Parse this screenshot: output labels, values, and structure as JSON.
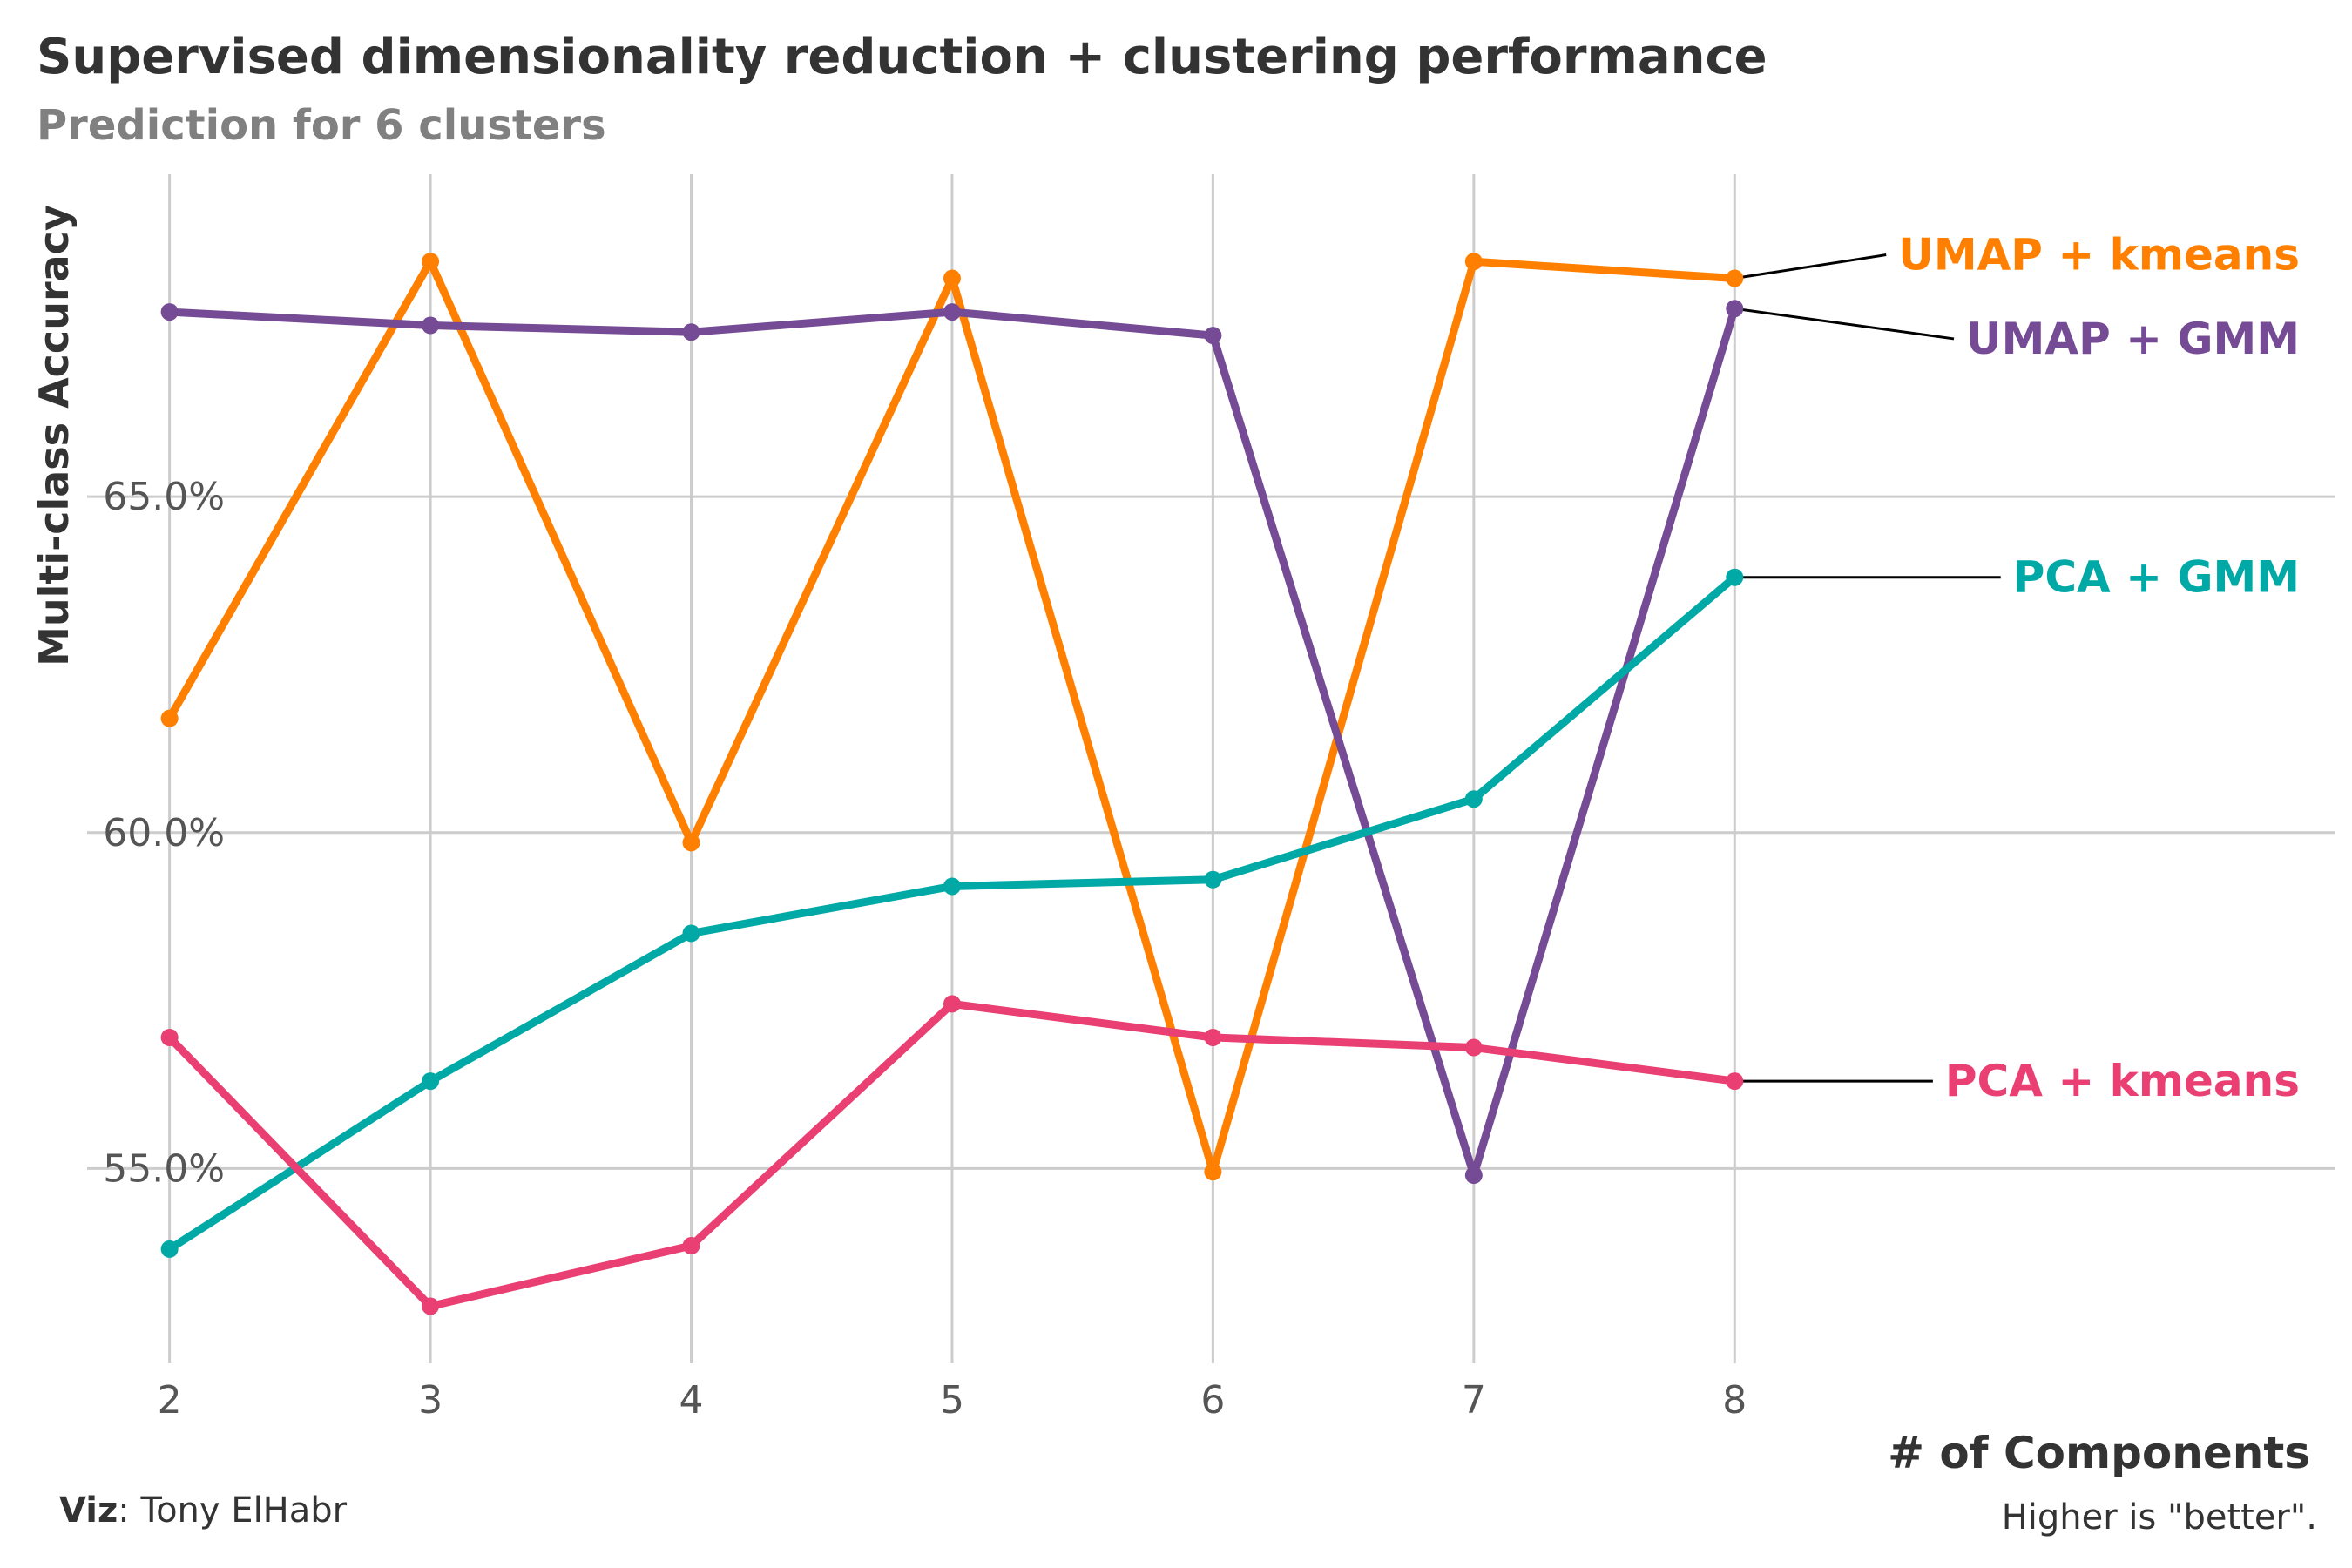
{
  "chart_data": {
    "type": "line",
    "title": "Supervised dimensionality reduction + clustering performance",
    "subtitle": "Prediction for 6 clusters",
    "xlabel": "# of Components",
    "ylabel": "Multi-class Accuracy",
    "x": [
      2,
      3,
      4,
      5,
      6,
      7,
      8
    ],
    "xlim": [
      1.35,
      10.3
    ],
    "ylim": [
      52.1,
      69.8
    ],
    "y_ticks": [
      55.0,
      60.0,
      65.0
    ],
    "y_tick_labels": [
      "55.0%",
      "60.0%",
      "65.0%"
    ],
    "x_tick_labels": [
      "2",
      "3",
      "4",
      "5",
      "6",
      "7",
      "8"
    ],
    "grid": true,
    "legend": "direct-labels-right",
    "series": [
      {
        "name": "UMAP + kmeans",
        "color": "#FF8000",
        "values": [
          61.7,
          68.5,
          59.85,
          68.25,
          54.95,
          68.5,
          68.25
        ]
      },
      {
        "name": "UMAP + GMM",
        "color": "#744B94",
        "values": [
          67.75,
          67.55,
          67.45,
          67.75,
          67.4,
          54.9,
          67.8
        ]
      },
      {
        "name": "PCA + GMM",
        "color": "#00A9A5",
        "values": [
          53.8,
          56.3,
          58.5,
          59.2,
          59.3,
          60.5,
          63.8
        ]
      },
      {
        "name": "PCA + kmeans",
        "color": "#E93F72",
        "values": [
          56.95,
          52.95,
          53.85,
          57.45,
          56.95,
          56.8,
          56.3
        ]
      }
    ],
    "label_anchor_x": 9.05,
    "label_y": {
      "UMAP + kmeans": 68.6,
      "UMAP + GMM": 67.35,
      "PCA + GMM": 63.8,
      "PCA + kmeans": 56.3
    },
    "caption_left_bold": "Viz",
    "caption_left_text": ": Tony ElHabr",
    "caption_right": "Higher is \"better\"."
  },
  "colors": {
    "grid": "#CCCCCC",
    "title": "#333333",
    "subtitle": "#808080",
    "tick": "#555555",
    "leader": "#000000"
  }
}
